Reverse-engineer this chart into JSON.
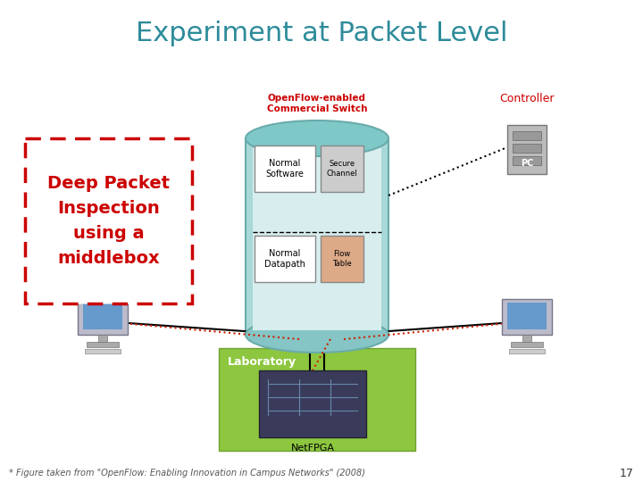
{
  "title": "Experiment at Packet Level",
  "title_color": "#2E8B9A",
  "title_fontsize": 22,
  "box_text": "Deep Packet\nInspection\nusing a\nmiddlebox",
  "box_text_color": "#CC0000",
  "box_border_color": "#CC0000",
  "footnote": "* Figure taken from \"OpenFlow: Enabling Innovation in Campus Networks\" (2008)",
  "page_number": "17",
  "background_color": "#ffffff",
  "controller_label": "Controller",
  "controller_color": "#CC0000",
  "pc_label": "PC",
  "netfpga_label": "NetFPGA",
  "laboratory_label": "Laboratory",
  "openflow_label": "OpenFlow-enabled\nCommercial Switch",
  "openflow_color": "#CC0000",
  "sw_color_top": "#7EC8C8",
  "sw_color_body": "#A8D8D8",
  "lab_color": "#8DC63F",
  "normal_software": "Normal\nSoftware",
  "normal_datapath": "Normal\nDatapath",
  "secure_channel": "Secure\nChannel",
  "flow_table": "Flow\nTable"
}
